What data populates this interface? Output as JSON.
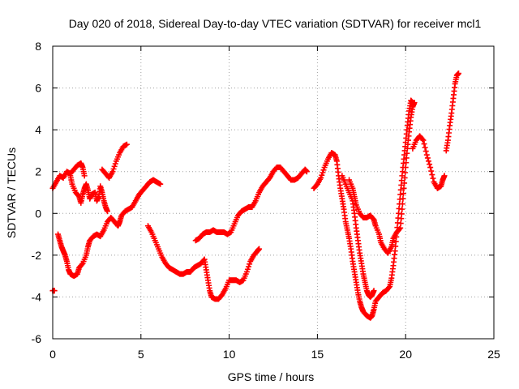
{
  "chart_data": {
    "type": "scatter",
    "title": "Day 020 of 2018, Sidereal Day-to-day VTEC variation (SDTVAR) for receiver mcl1",
    "xlabel": "GPS time / hours",
    "ylabel": "SDTVAR / TECUs",
    "xlim": [
      0,
      25
    ],
    "ylim": [
      -6,
      8
    ],
    "xticks": [
      "0",
      "5",
      "10",
      "15",
      "20",
      "25"
    ],
    "yticks": [
      "-6",
      "-4",
      "-2",
      "0",
      "2",
      "4",
      "6",
      "8"
    ],
    "grid": true,
    "marker": "+",
    "series_color": "#ff0000",
    "segments": [
      [
        [
          0.0,
          1.2
        ],
        [
          0.2,
          1.5
        ],
        [
          0.4,
          1.8
        ],
        [
          0.6,
          1.7
        ],
        [
          0.8,
          2.0
        ],
        [
          1.0,
          1.9
        ],
        [
          1.2,
          2.1
        ],
        [
          1.4,
          2.3
        ],
        [
          1.6,
          2.4
        ],
        [
          1.7,
          2.2
        ],
        [
          1.8,
          1.8
        ]
      ],
      [
        [
          0.0,
          -3.7
        ],
        [
          0.1,
          -3.7
        ]
      ],
      [
        [
          0.3,
          -1.0
        ],
        [
          0.4,
          -1.3
        ],
        [
          0.5,
          -1.6
        ],
        [
          0.6,
          -1.8
        ],
        [
          0.7,
          -2.0
        ],
        [
          0.8,
          -2.3
        ],
        [
          0.9,
          -2.7
        ],
        [
          1.0,
          -2.9
        ],
        [
          1.2,
          -3.0
        ],
        [
          1.4,
          -2.9
        ],
        [
          1.5,
          -2.6
        ],
        [
          1.7,
          -2.4
        ],
        [
          1.9,
          -2.0
        ],
        [
          2.0,
          -1.6
        ],
        [
          2.1,
          -1.3
        ],
        [
          2.3,
          -1.1
        ],
        [
          2.5,
          -1.0
        ],
        [
          2.7,
          -1.1
        ],
        [
          2.9,
          -0.8
        ],
        [
          3.1,
          -0.4
        ],
        [
          3.3,
          -0.2
        ],
        [
          3.5,
          -0.4
        ],
        [
          3.7,
          -0.6
        ],
        [
          3.8,
          -0.4
        ],
        [
          3.9,
          -0.1
        ],
        [
          4.1,
          0.1
        ],
        [
          4.3,
          0.2
        ],
        [
          4.5,
          0.3
        ],
        [
          4.7,
          0.6
        ],
        [
          4.9,
          0.9
        ],
        [
          5.1,
          1.1
        ],
        [
          5.3,
          1.3
        ],
        [
          5.5,
          1.5
        ],
        [
          5.7,
          1.6
        ],
        [
          5.9,
          1.5
        ],
        [
          6.1,
          1.4
        ]
      ],
      [
        [
          1.0,
          1.8
        ],
        [
          1.1,
          1.4
        ],
        [
          1.3,
          1.0
        ],
        [
          1.5,
          0.8
        ],
        [
          1.6,
          0.5
        ],
        [
          1.7,
          0.9
        ],
        [
          1.8,
          1.2
        ],
        [
          1.9,
          1.4
        ],
        [
          2.0,
          1.1
        ],
        [
          2.1,
          0.7
        ],
        [
          2.2,
          0.9
        ],
        [
          2.4,
          1.0
        ],
        [
          2.5,
          0.6
        ],
        [
          2.6,
          0.8
        ],
        [
          2.7,
          1.3
        ],
        [
          2.8,
          1.0
        ],
        [
          2.9,
          0.6
        ],
        [
          3.0,
          0.3
        ],
        [
          3.1,
          0.1
        ]
      ],
      [
        [
          2.8,
          2.1
        ],
        [
          3.0,
          1.9
        ],
        [
          3.2,
          1.7
        ],
        [
          3.4,
          2.0
        ],
        [
          3.6,
          2.5
        ],
        [
          3.8,
          2.9
        ],
        [
          4.0,
          3.2
        ],
        [
          4.2,
          3.3
        ]
      ],
      [
        [
          5.4,
          -0.6
        ],
        [
          5.6,
          -0.9
        ],
        [
          5.8,
          -1.3
        ],
        [
          6.0,
          -1.7
        ],
        [
          6.2,
          -2.1
        ],
        [
          6.4,
          -2.4
        ],
        [
          6.6,
          -2.6
        ],
        [
          6.8,
          -2.7
        ],
        [
          7.0,
          -2.8
        ],
        [
          7.2,
          -2.9
        ],
        [
          7.4,
          -2.9
        ],
        [
          7.6,
          -2.8
        ],
        [
          7.8,
          -2.8
        ],
        [
          8.0,
          -2.6
        ],
        [
          8.2,
          -2.5
        ],
        [
          8.4,
          -2.4
        ],
        [
          8.6,
          -2.2
        ],
        [
          8.7,
          -2.7
        ],
        [
          8.8,
          -3.2
        ],
        [
          8.9,
          -3.7
        ],
        [
          9.0,
          -4.0
        ],
        [
          9.2,
          -4.1
        ],
        [
          9.4,
          -4.1
        ],
        [
          9.6,
          -3.9
        ],
        [
          9.8,
          -3.6
        ],
        [
          10.0,
          -3.2
        ],
        [
          10.2,
          -3.2
        ],
        [
          10.4,
          -3.2
        ],
        [
          10.6,
          -3.3
        ],
        [
          10.8,
          -3.2
        ],
        [
          11.0,
          -2.8
        ],
        [
          11.2,
          -2.3
        ],
        [
          11.4,
          -2.0
        ],
        [
          11.6,
          -1.8
        ],
        [
          11.7,
          -1.7
        ]
      ],
      [
        [
          8.1,
          -1.3
        ],
        [
          8.3,
          -1.2
        ],
        [
          8.5,
          -1.0
        ],
        [
          8.7,
          -0.9
        ],
        [
          8.9,
          -0.9
        ],
        [
          9.1,
          -0.8
        ],
        [
          9.3,
          -0.9
        ],
        [
          9.5,
          -0.9
        ],
        [
          9.7,
          -0.9
        ],
        [
          9.9,
          -1.0
        ],
        [
          10.1,
          -0.9
        ],
        [
          10.3,
          -0.5
        ],
        [
          10.5,
          -0.1
        ],
        [
          10.7,
          0.1
        ],
        [
          10.9,
          0.2
        ],
        [
          11.1,
          0.3
        ],
        [
          11.3,
          0.3
        ],
        [
          11.5,
          0.6
        ],
        [
          11.7,
          1.0
        ],
        [
          11.9,
          1.3
        ],
        [
          12.1,
          1.5
        ],
        [
          12.3,
          1.7
        ],
        [
          12.5,
          2.0
        ],
        [
          12.7,
          2.2
        ],
        [
          12.9,
          2.2
        ],
        [
          13.1,
          2.0
        ],
        [
          13.3,
          1.8
        ],
        [
          13.5,
          1.6
        ],
        [
          13.7,
          1.6
        ],
        [
          13.9,
          1.7
        ],
        [
          14.1,
          1.9
        ],
        [
          14.3,
          2.1
        ],
        [
          14.4,
          2.0
        ]
      ],
      [
        [
          14.8,
          1.2
        ],
        [
          15.0,
          1.4
        ],
        [
          15.2,
          1.7
        ],
        [
          15.4,
          2.2
        ],
        [
          15.6,
          2.6
        ],
        [
          15.8,
          2.9
        ],
        [
          16.0,
          2.8
        ],
        [
          16.1,
          2.5
        ],
        [
          16.2,
          1.8
        ],
        [
          16.3,
          1.2
        ],
        [
          16.4,
          0.7
        ],
        [
          16.5,
          0.2
        ],
        [
          16.6,
          -0.4
        ],
        [
          16.7,
          -0.8
        ],
        [
          16.8,
          -1.2
        ],
        [
          16.9,
          -1.7
        ],
        [
          17.0,
          -2.3
        ],
        [
          17.1,
          -2.8
        ],
        [
          17.2,
          -3.3
        ],
        [
          17.3,
          -3.8
        ],
        [
          17.4,
          -4.2
        ],
        [
          17.5,
          -4.5
        ],
        [
          17.6,
          -4.7
        ],
        [
          17.8,
          -4.9
        ],
        [
          18.0,
          -5.0
        ],
        [
          18.1,
          -4.9
        ],
        [
          18.2,
          -4.6
        ],
        [
          18.3,
          -4.2
        ],
        [
          18.5,
          -4.0
        ],
        [
          18.7,
          -3.8
        ],
        [
          18.9,
          -3.7
        ],
        [
          19.1,
          -3.5
        ],
        [
          19.2,
          -3.1
        ],
        [
          19.3,
          -2.5
        ],
        [
          19.4,
          -1.8
        ],
        [
          19.5,
          -0.9
        ],
        [
          19.6,
          0.0
        ],
        [
          19.7,
          0.9
        ],
        [
          19.8,
          1.8
        ],
        [
          19.9,
          2.6
        ],
        [
          20.0,
          3.4
        ],
        [
          20.1,
          4.2
        ],
        [
          20.2,
          4.9
        ],
        [
          20.3,
          5.4
        ],
        [
          20.4,
          5.3
        ]
      ],
      [
        [
          16.4,
          1.8
        ],
        [
          16.6,
          1.4
        ],
        [
          16.8,
          1.0
        ],
        [
          17.0,
          0.6
        ],
        [
          17.1,
          0.0
        ],
        [
          17.2,
          -0.7
        ],
        [
          17.3,
          -1.3
        ],
        [
          17.4,
          -1.9
        ],
        [
          17.5,
          -2.4
        ],
        [
          17.6,
          -2.9
        ],
        [
          17.7,
          -3.3
        ],
        [
          17.8,
          -3.7
        ],
        [
          17.9,
          -3.9
        ],
        [
          18.0,
          -4.0
        ],
        [
          18.1,
          -3.9
        ],
        [
          18.2,
          -3.7
        ]
      ],
      [
        [
          16.8,
          1.6
        ],
        [
          17.0,
          1.2
        ],
        [
          17.1,
          0.8
        ],
        [
          17.2,
          0.4
        ],
        [
          17.4,
          0.0
        ],
        [
          17.6,
          -0.2
        ],
        [
          17.8,
          -0.2
        ],
        [
          18.0,
          -0.1
        ],
        [
          18.2,
          -0.3
        ],
        [
          18.3,
          -0.6
        ],
        [
          18.5,
          -1.0
        ],
        [
          18.6,
          -1.4
        ],
        [
          18.8,
          -1.7
        ],
        [
          19.0,
          -1.9
        ],
        [
          19.2,
          -1.6
        ],
        [
          19.3,
          -1.2
        ],
        [
          19.5,
          -0.9
        ],
        [
          19.7,
          -0.7
        ],
        [
          19.8,
          0.2
        ],
        [
          19.9,
          1.2
        ],
        [
          20.0,
          2.2
        ],
        [
          20.1,
          3.1
        ],
        [
          20.2,
          3.9
        ],
        [
          20.3,
          4.6
        ],
        [
          20.4,
          5.1
        ],
        [
          20.5,
          5.3
        ]
      ],
      [
        [
          20.4,
          3.1
        ],
        [
          20.6,
          3.5
        ],
        [
          20.8,
          3.7
        ],
        [
          21.0,
          3.5
        ],
        [
          21.2,
          2.8
        ],
        [
          21.4,
          2.2
        ],
        [
          21.6,
          1.5
        ],
        [
          21.8,
          1.2
        ],
        [
          22.0,
          1.3
        ],
        [
          22.1,
          1.6
        ],
        [
          22.2,
          1.8
        ]
      ],
      [
        [
          22.3,
          3.0
        ],
        [
          22.4,
          3.5
        ],
        [
          22.5,
          4.2
        ],
        [
          22.6,
          4.8
        ],
        [
          22.7,
          5.5
        ],
        [
          22.8,
          6.2
        ],
        [
          22.9,
          6.6
        ],
        [
          23.0,
          6.7
        ]
      ]
    ]
  }
}
